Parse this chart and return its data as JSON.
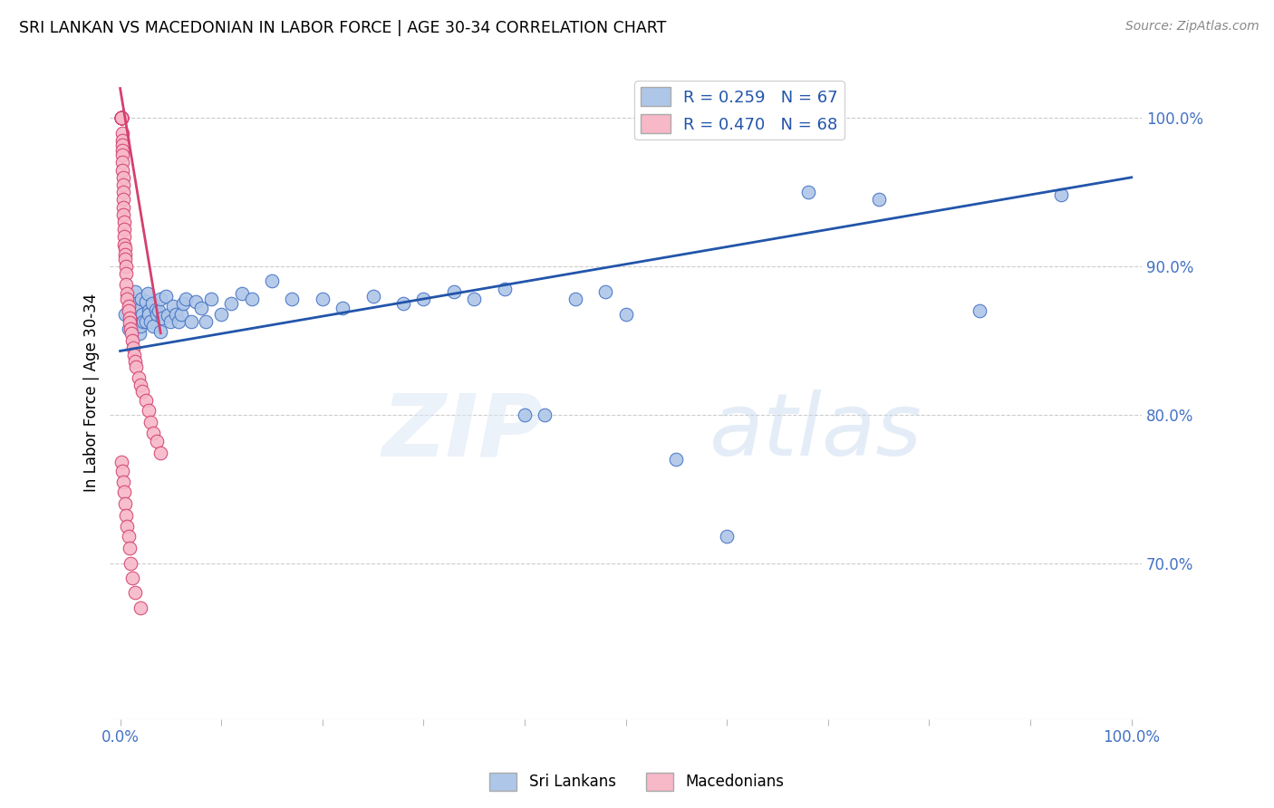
{
  "title": "SRI LANKAN VS MACEDONIAN IN LABOR FORCE | AGE 30-34 CORRELATION CHART",
  "source": "Source: ZipAtlas.com",
  "ylabel": "In Labor Force | Age 30-34",
  "x_ticks": [
    0.0,
    0.1,
    0.2,
    0.3,
    0.4,
    0.5,
    0.6,
    0.7,
    0.8,
    0.9,
    1.0
  ],
  "x_tick_labels": [
    "0.0%",
    "",
    "",
    "",
    "",
    "",
    "",
    "",
    "",
    "",
    "100.0%"
  ],
  "y_ticks": [
    0.7,
    0.8,
    0.9,
    1.0
  ],
  "y_tick_labels_right": [
    "70.0%",
    "80.0%",
    "90.0%",
    "100.0%"
  ],
  "xlim": [
    -0.01,
    1.01
  ],
  "ylim": [
    0.595,
    1.035
  ],
  "R_blue": 0.259,
  "N_blue": 67,
  "R_pink": 0.47,
  "N_pink": 68,
  "blue_color": "#aec6e8",
  "pink_color": "#f7b8c8",
  "blue_edge_color": "#4472c4",
  "pink_edge_color": "#d44070",
  "blue_line_color": "#2255aa",
  "pink_line_color": "#d44070",
  "watermark_zip": "ZIP",
  "watermark_atlas": "atlas",
  "legend_label_blue": "Sri Lankans",
  "legend_label_pink": "Macedonians",
  "blue_x": [
    0.005,
    0.008,
    0.01,
    0.012,
    0.013,
    0.015,
    0.016,
    0.017,
    0.018,
    0.019,
    0.02,
    0.021,
    0.022,
    0.023,
    0.025,
    0.025,
    0.027,
    0.028,
    0.028,
    0.03,
    0.032,
    0.033,
    0.035,
    0.036,
    0.038,
    0.04,
    0.04,
    0.042,
    0.045,
    0.047,
    0.05,
    0.052,
    0.055,
    0.058,
    0.06,
    0.062,
    0.065,
    0.07,
    0.075,
    0.08,
    0.085,
    0.09,
    0.1,
    0.11,
    0.12,
    0.13,
    0.15,
    0.17,
    0.2,
    0.22,
    0.25,
    0.28,
    0.3,
    0.33,
    0.35,
    0.38,
    0.4,
    0.42,
    0.45,
    0.48,
    0.5,
    0.55,
    0.6,
    0.68,
    0.75,
    0.85,
    0.93
  ],
  "blue_y": [
    0.868,
    0.858,
    0.875,
    0.872,
    0.865,
    0.883,
    0.875,
    0.863,
    0.871,
    0.855,
    0.86,
    0.878,
    0.868,
    0.863,
    0.876,
    0.863,
    0.882,
    0.87,
    0.868,
    0.863,
    0.875,
    0.86,
    0.871,
    0.868,
    0.87,
    0.878,
    0.856,
    0.865,
    0.88,
    0.867,
    0.863,
    0.873,
    0.868,
    0.863,
    0.868,
    0.875,
    0.878,
    0.863,
    0.876,
    0.872,
    0.863,
    0.878,
    0.868,
    0.875,
    0.882,
    0.878,
    0.89,
    0.878,
    0.878,
    0.872,
    0.88,
    0.875,
    0.878,
    0.883,
    0.878,
    0.885,
    0.8,
    0.8,
    0.878,
    0.883,
    0.868,
    0.77,
    0.718,
    0.95,
    0.945,
    0.87,
    0.948
  ],
  "pink_x": [
    0.001,
    0.001,
    0.001,
    0.001,
    0.001,
    0.001,
    0.001,
    0.001,
    0.001,
    0.001,
    0.002,
    0.002,
    0.002,
    0.002,
    0.002,
    0.002,
    0.002,
    0.003,
    0.003,
    0.003,
    0.003,
    0.003,
    0.003,
    0.004,
    0.004,
    0.004,
    0.004,
    0.005,
    0.005,
    0.005,
    0.006,
    0.006,
    0.006,
    0.007,
    0.007,
    0.008,
    0.008,
    0.009,
    0.009,
    0.01,
    0.011,
    0.012,
    0.013,
    0.014,
    0.015,
    0.016,
    0.018,
    0.02,
    0.022,
    0.025,
    0.028,
    0.03,
    0.033,
    0.036,
    0.04,
    0.001,
    0.002,
    0.003,
    0.004,
    0.005,
    0.006,
    0.007,
    0.008,
    0.009,
    0.01,
    0.012,
    0.015,
    0.02
  ],
  "pink_y": [
    1.0,
    1.0,
    1.0,
    1.0,
    1.0,
    1.0,
    1.0,
    1.0,
    1.0,
    1.0,
    0.99,
    0.985,
    0.982,
    0.978,
    0.975,
    0.97,
    0.965,
    0.96,
    0.955,
    0.95,
    0.945,
    0.94,
    0.935,
    0.93,
    0.925,
    0.92,
    0.915,
    0.912,
    0.908,
    0.905,
    0.9,
    0.895,
    0.888,
    0.882,
    0.878,
    0.873,
    0.87,
    0.865,
    0.862,
    0.858,
    0.855,
    0.85,
    0.845,
    0.84,
    0.836,
    0.832,
    0.825,
    0.82,
    0.816,
    0.81,
    0.803,
    0.795,
    0.788,
    0.782,
    0.774,
    0.768,
    0.762,
    0.755,
    0.748,
    0.74,
    0.732,
    0.725,
    0.718,
    0.71,
    0.7,
    0.69,
    0.68,
    0.67
  ],
  "blue_trend_x": [
    0.0,
    1.0
  ],
  "blue_trend_y_start": 0.843,
  "blue_trend_y_end": 0.96,
  "pink_trend_x_start": 0.0,
  "pink_trend_x_end": 0.04,
  "pink_trend_y_start": 1.02,
  "pink_trend_y_end": 0.855
}
